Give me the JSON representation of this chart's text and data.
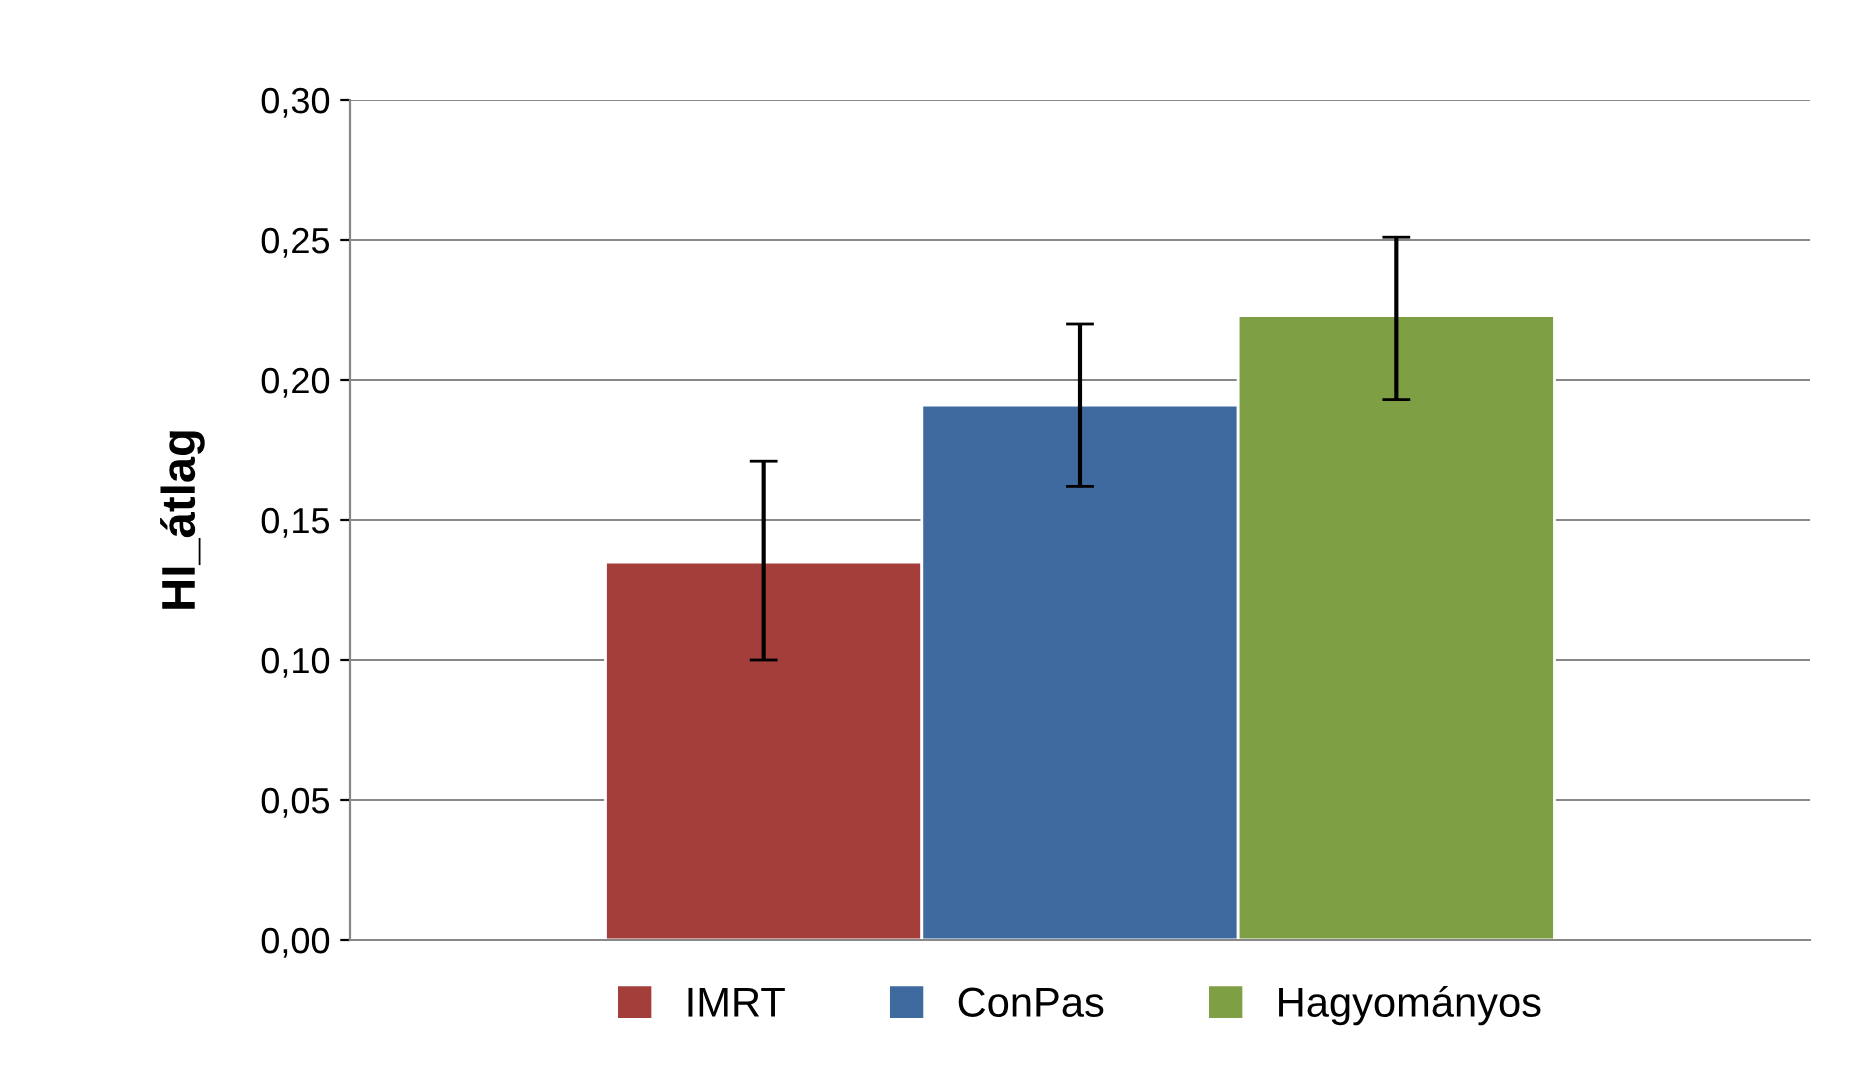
{
  "chart_data": {
    "type": "bar",
    "ylabel": "HI_átlag",
    "categories": [
      null
    ],
    "series": [
      {
        "name": "IMRT",
        "color": "#a33e3b",
        "values": [
          0.135
        ],
        "errors": [
          [
            0.1,
            0.171
          ]
        ]
      },
      {
        "name": "ConPas",
        "color": "#3e6aa0",
        "values": [
          0.191
        ],
        "errors": [
          [
            0.162,
            0.22
          ]
        ]
      },
      {
        "name": "Hagyományos",
        "color": "#7f9f45",
        "values": [
          0.223
        ],
        "errors": [
          [
            0.193,
            0.251
          ]
        ]
      }
    ],
    "ylim": [
      0,
      0.3
    ],
    "yticks": [
      {
        "value": 0,
        "label": "0,00"
      },
      {
        "value": 0.05,
        "label": "0,05"
      },
      {
        "value": 0.1,
        "label": "0,10"
      },
      {
        "value": 0.15,
        "label": "0,15"
      },
      {
        "value": 0.2,
        "label": "0,20"
      },
      {
        "value": 0.25,
        "label": "0,25"
      },
      {
        "value": 0.3,
        "label": "0,30"
      }
    ],
    "grid": "y",
    "legend": "bottom"
  }
}
